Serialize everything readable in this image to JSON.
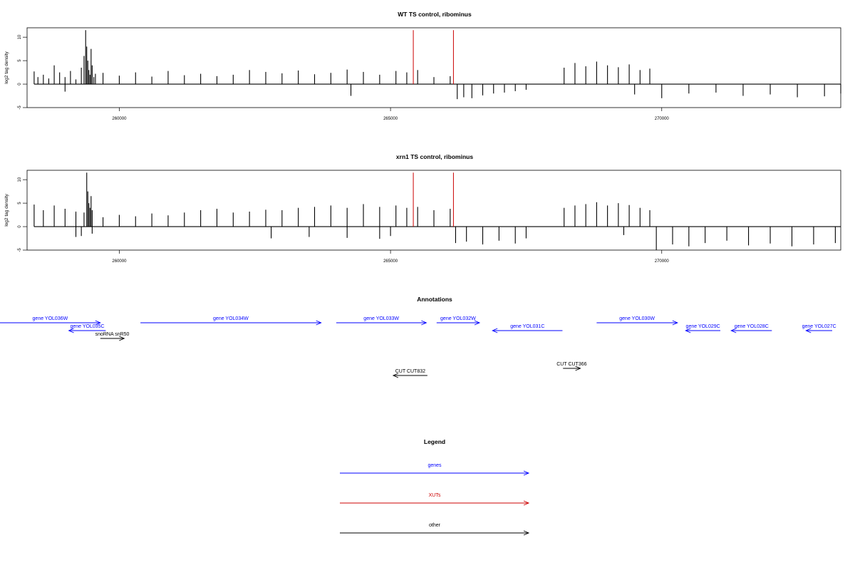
{
  "colors": {
    "gene": "#0000ff",
    "xut": "#cc0000",
    "other": "#000000",
    "axis": "#000000"
  },
  "chart_data": [
    {
      "type": "bar",
      "title": "WT TS control, ribominus",
      "ylabel": "log2 tag density",
      "xlim": [
        258300,
        273300
      ],
      "ylim": [
        -5,
        12
      ],
      "x_ticks": [
        260000,
        265000,
        270000
      ],
      "x_tick_labels": [
        "260000",
        "265000",
        "270000"
      ],
      "y_ticks": [
        -5,
        0,
        5,
        10
      ],
      "y_tick_labels": [
        "-5",
        "0",
        "5",
        "10"
      ],
      "series": [
        {
          "x": [
            258430,
            258500,
            258600,
            258700,
            258800,
            258900,
            259000,
            259100,
            259200,
            259300,
            259350,
            259380,
            259400,
            259420,
            259440,
            259460,
            259480,
            259500,
            259530,
            259560,
            259700,
            260000,
            260300,
            260600,
            260900,
            261200,
            261500,
            261800,
            262100,
            262400,
            262700,
            263000,
            263300,
            263600,
            263900,
            264200,
            264500,
            264800,
            265100,
            265300,
            265500,
            265800,
            266100,
            268200,
            268400,
            268600,
            268800,
            269000,
            269200,
            269400,
            269600,
            269780
          ],
          "values": [
            2.7,
            1.5,
            2.0,
            1.2,
            4.0,
            2.5,
            1.5,
            2.8,
            1.0,
            3.5,
            6.0,
            11.5,
            8.0,
            5.0,
            3.0,
            2.0,
            7.5,
            4.0,
            1.5,
            2.2,
            2.4,
            1.8,
            2.5,
            1.6,
            2.8,
            1.9,
            2.2,
            1.7,
            2.0,
            3.0,
            2.6,
            2.3,
            2.9,
            2.1,
            2.4,
            3.1,
            2.6,
            2.0,
            2.8,
            2.5,
            3.0,
            1.5,
            1.7,
            3.5,
            4.5,
            3.8,
            4.8,
            4.0,
            3.6,
            4.2,
            3.0,
            3.3
          ]
        },
        {
          "x": [
            259000,
            264270,
            266230,
            266350,
            266500,
            266700,
            266900,
            267100,
            267300,
            267500,
            269500,
            270000,
            270500,
            271000,
            271500,
            272000,
            272500,
            273000,
            273300
          ],
          "values": [
            -1.6,
            -2.5,
            -3.2,
            -2.8,
            -3.0,
            -2.4,
            -2.0,
            -1.8,
            -1.5,
            -1.2,
            -2.2,
            -3.0,
            -2.0,
            -1.8,
            -2.5,
            -2.2,
            -2.8,
            -2.6,
            -2.0
          ]
        },
        {
          "name": "XUTs",
          "x": [
            265420,
            266160
          ],
          "values": [
            11.5,
            11.5
          ]
        }
      ]
    },
    {
      "type": "bar",
      "title": "xrn1 TS control, ribominus",
      "ylabel": "log2 tag density",
      "xlim": [
        258300,
        273300
      ],
      "ylim": [
        -5,
        12
      ],
      "x_ticks": [
        260000,
        265000,
        270000
      ],
      "x_tick_labels": [
        "260000",
        "265000",
        "270000"
      ],
      "y_ticks": [
        -5,
        0,
        5,
        10
      ],
      "y_tick_labels": [
        "-5",
        "0",
        "5",
        "10"
      ],
      "series": [
        {
          "x": [
            258430,
            258600,
            258800,
            259000,
            259200,
            259350,
            259400,
            259420,
            259440,
            259460,
            259480,
            259500,
            259700,
            260000,
            260300,
            260600,
            260900,
            261200,
            261500,
            261800,
            262100,
            262400,
            262700,
            263000,
            263300,
            263600,
            263900,
            264200,
            264500,
            264800,
            265100,
            265300,
            265500,
            265800,
            266100,
            268200,
            268400,
            268600,
            268800,
            269000,
            269200,
            269400,
            269600,
            269780
          ],
          "values": [
            4.7,
            3.5,
            4.5,
            3.8,
            3.2,
            3.0,
            11.5,
            7.5,
            5.0,
            4.0,
            6.5,
            3.5,
            2.0,
            2.5,
            2.2,
            2.8,
            2.4,
            3.0,
            3.5,
            3.8,
            3.0,
            3.2,
            3.6,
            3.5,
            4.0,
            4.2,
            4.5,
            4.0,
            4.8,
            4.2,
            4.5,
            4.0,
            4.2,
            3.5,
            3.8,
            4.0,
            4.5,
            4.8,
            5.2,
            4.5,
            5.0,
            4.6,
            4.0,
            3.5
          ]
        },
        {
          "x": [
            259200,
            259300,
            259500,
            262800,
            263500,
            264200,
            264800,
            265000,
            266200,
            266400,
            266700,
            267000,
            267300,
            267500,
            269300,
            269900,
            270200,
            270500,
            270800,
            271200,
            271600,
            272000,
            272400,
            272800,
            273200
          ],
          "values": [
            -2.2,
            -2.0,
            -1.5,
            -2.5,
            -2.2,
            -2.4,
            -2.6,
            -2.0,
            -3.5,
            -3.2,
            -3.8,
            -3.0,
            -3.6,
            -2.5,
            -1.8,
            -5.0,
            -3.8,
            -4.2,
            -3.5,
            -3.0,
            -4.0,
            -3.6,
            -4.2,
            -3.8,
            -3.5
          ]
        },
        {
          "name": "XUTs",
          "x": [
            265420,
            266160
          ],
          "values": [
            11.5,
            11.5
          ]
        }
      ]
    }
  ],
  "annotations": {
    "title": "Annotations",
    "items": [
      {
        "label": "gene YOL036W",
        "kind": "gene",
        "start": 257700,
        "end": 259650,
        "strand": "+",
        "row": 0
      },
      {
        "label": "gene YOL035C",
        "kind": "gene",
        "start": 259070,
        "end": 259750,
        "strand": "-",
        "row": 1
      },
      {
        "label": "snoRNA snR50",
        "kind": "other",
        "start": 259650,
        "end": 260090,
        "strand": "+",
        "row": 2
      },
      {
        "label": "gene YOL034W",
        "kind": "gene",
        "start": 260390,
        "end": 263720,
        "strand": "+",
        "row": 0
      },
      {
        "label": "gene YOL033W",
        "kind": "gene",
        "start": 264000,
        "end": 265660,
        "strand": "+",
        "row": 0
      },
      {
        "label": "gene YOL032W",
        "kind": "gene",
        "start": 265850,
        "end": 266640,
        "strand": "+",
        "row": 0
      },
      {
        "label": "gene YOL031C",
        "kind": "gene",
        "start": 266880,
        "end": 268170,
        "strand": "-",
        "row": 1
      },
      {
        "label": "gene YOL030W",
        "kind": "gene",
        "start": 268800,
        "end": 270290,
        "strand": "+",
        "row": 0
      },
      {
        "label": "gene YOL029C",
        "kind": "gene",
        "start": 270440,
        "end": 271080,
        "strand": "-",
        "row": 1
      },
      {
        "label": "gene YOL028C",
        "kind": "gene",
        "start": 271280,
        "end": 272030,
        "strand": "-",
        "row": 1
      },
      {
        "label": "gene YOL027C",
        "kind": "gene",
        "start": 272660,
        "end": 274450,
        "strand": "-",
        "row": 1
      },
      {
        "label": "CUT CUT832",
        "kind": "other",
        "start": 265050,
        "end": 265680,
        "strand": "-",
        "row": 3
      },
      {
        "label": "CUT CUT366",
        "kind": "other",
        "start": 268180,
        "end": 268500,
        "strand": "+",
        "row": 4
      }
    ]
  },
  "legend": {
    "title": "Legend",
    "items": [
      {
        "label": "genes",
        "kind": "gene"
      },
      {
        "label": "XUTs",
        "kind": "xut"
      },
      {
        "label": "other",
        "kind": "other"
      }
    ]
  }
}
